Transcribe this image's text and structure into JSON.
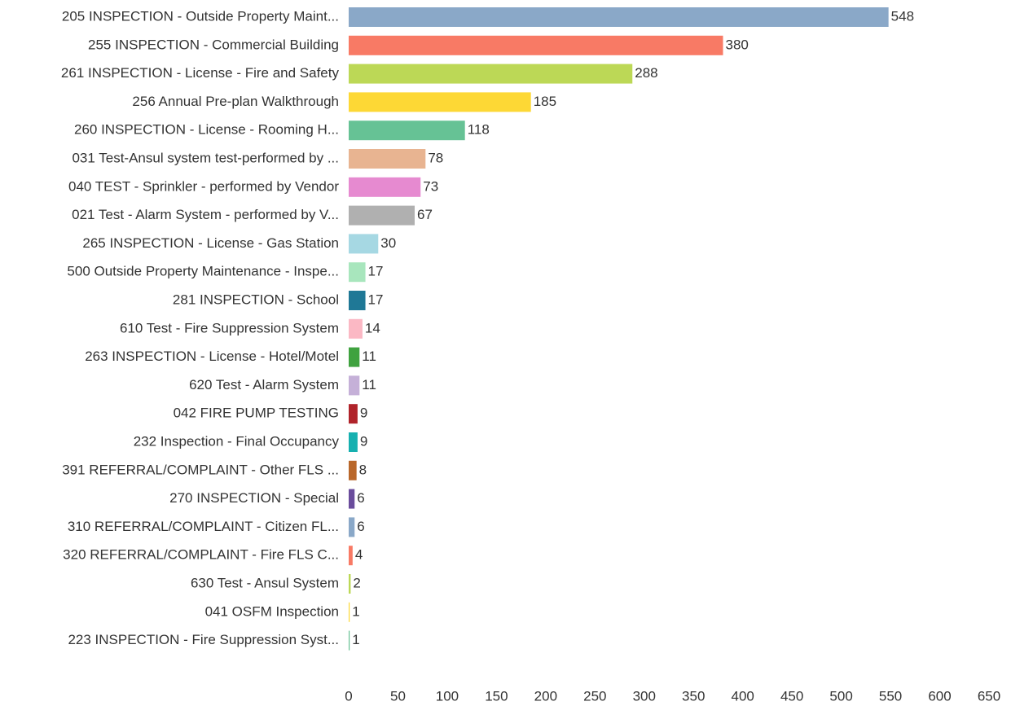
{
  "chart_data": {
    "type": "bar",
    "orientation": "horizontal",
    "categories": [
      "205 INSPECTION - Outside Property Maint...",
      "255 INSPECTION - Commercial Building",
      "261 INSPECTION - License - Fire and Safety",
      "256 Annual Pre-plan Walkthrough",
      "260 INSPECTION - License - Rooming H...",
      "031 Test-Ansul system test-performed by ...",
      "040 TEST - Sprinkler - performed by Vendor",
      "021 Test - Alarm System - performed by V...",
      "265 INSPECTION - License - Gas Station",
      "500 Outside Property Maintenance - Inspe...",
      "281 INSPECTION - School",
      "610 Test - Fire Suppression System",
      "263 INSPECTION - License - Hotel/Motel",
      "620 Test - Alarm System",
      "042 FIRE PUMP TESTING",
      "232 Inspection - Final Occupancy",
      "391 REFERRAL/COMPLAINT - Other FLS ...",
      "270 INSPECTION - Special",
      "310 REFERRAL/COMPLAINT - Citizen FL...",
      "320 REFERRAL/COMPLAINT - Fire  FLS C...",
      "630 Test - Ansul System",
      "041 OSFM Inspection",
      "223 INSPECTION - Fire Suppression Syst..."
    ],
    "values": [
      548,
      380,
      288,
      185,
      118,
      78,
      73,
      67,
      30,
      17,
      17,
      14,
      11,
      11,
      9,
      9,
      8,
      6,
      6,
      4,
      2,
      1,
      1
    ],
    "colors": [
      "#8aa8c8",
      "#f87a65",
      "#bcd856",
      "#fdd835",
      "#66c295",
      "#e8b491",
      "#e68ad0",
      "#b0b0b0",
      "#a6d8e3",
      "#a8e6bd",
      "#1f7896",
      "#fbb8c4",
      "#3fa23f",
      "#c5b0d8",
      "#b0232a",
      "#16b0b0",
      "#b9672a",
      "#6a4c9c",
      "#8aa8c8",
      "#f87a65",
      "#bcd856",
      "#fdd835",
      "#66c295"
    ],
    "xlim": [
      0,
      650
    ],
    "xticks": [
      0,
      50,
      100,
      150,
      200,
      250,
      300,
      350,
      400,
      450,
      500,
      550,
      600,
      650
    ],
    "grid": false
  }
}
